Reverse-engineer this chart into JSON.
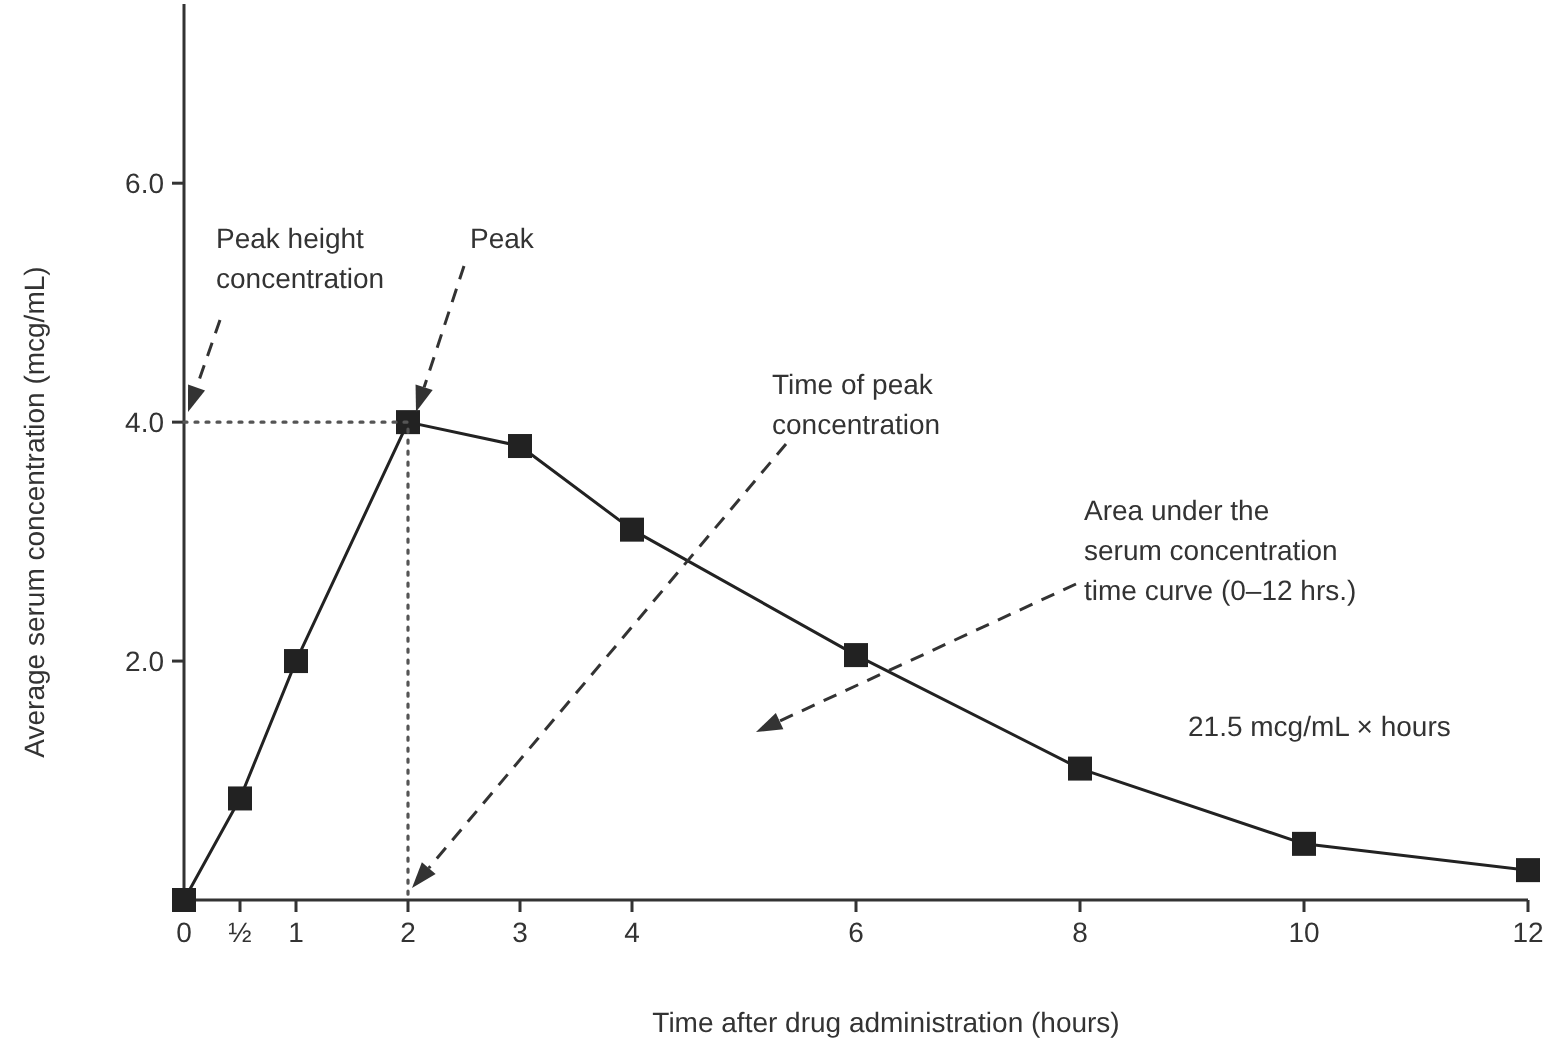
{
  "chart_data": {
    "type": "line",
    "xlabel": "Time after drug administration (hours)",
    "ylabel": "Average serum concentration (mcg/mL)",
    "xlim": [
      0,
      12
    ],
    "ylim": [
      0,
      7.5
    ],
    "xticks": [
      0,
      {
        "value": 0.5,
        "label": "½"
      },
      1,
      2,
      3,
      4,
      6,
      8,
      10,
      12
    ],
    "yticks": [
      {
        "value": 2,
        "label": "2.0"
      },
      {
        "value": 4,
        "label": "4.0"
      },
      {
        "value": 6,
        "label": "6.0"
      }
    ],
    "grid": false,
    "series": [
      {
        "color": "#222222",
        "x": [
          0,
          0.5,
          1,
          2,
          3,
          4,
          6,
          8,
          10,
          12
        ],
        "values": [
          0,
          0.85,
          2.0,
          4.0,
          3.8,
          3.1,
          2.05,
          1.1,
          0.47,
          0.25
        ],
        "marker": "square",
        "line_style": "solid"
      },
      {
        "color": "#555555",
        "x": [
          0,
          2,
          2
        ],
        "values": [
          4,
          4,
          0
        ],
        "marker": "none",
        "line_style": "dotted"
      }
    ],
    "annotations": [
      "Peak height concentration",
      "Peak",
      "Time of peak concentration",
      "Area under the serum concentration time curve (0–12 hrs.)",
      "21.5 mcg/mL × hours"
    ]
  }
}
